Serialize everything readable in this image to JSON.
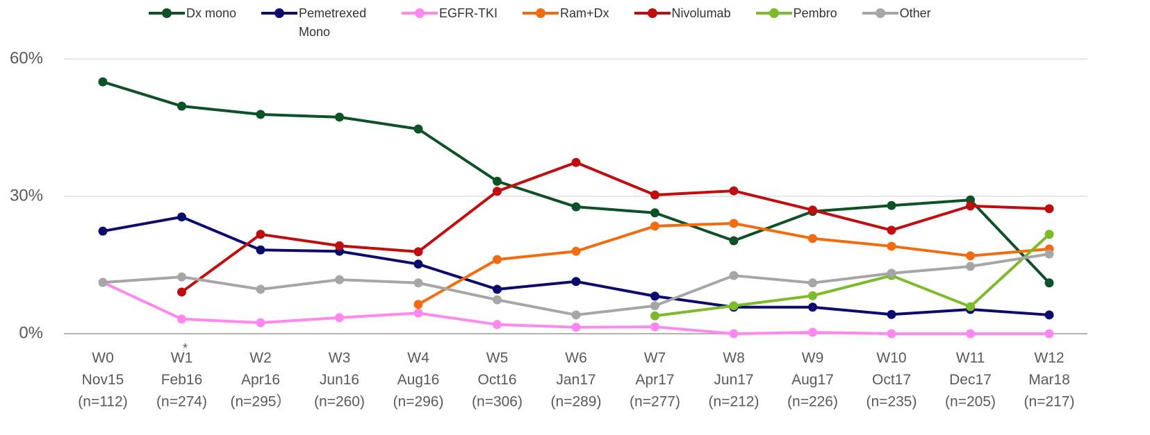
{
  "chart_data": {
    "type": "line",
    "categories": [
      [
        "W0",
        "Nov15",
        "(n=112)"
      ],
      [
        "W1",
        "Feb16",
        "(n=274)"
      ],
      [
        "W2",
        "Apr16",
        "(n=295）"
      ],
      [
        "W3",
        "Jun16",
        "(n=260)"
      ],
      [
        "W4",
        "Aug16",
        "(n=296)"
      ],
      [
        "W5",
        "Oct16",
        "(n=306)"
      ],
      [
        "W6",
        "Jan17",
        "(n=289)"
      ],
      [
        "W7",
        "Apr17",
        "(n=277)"
      ],
      [
        "W8",
        "Jun17",
        "(n=212)"
      ],
      [
        "W9",
        "Aug17",
        "(n=226)"
      ],
      [
        "W10",
        "Oct17",
        "(n=235)"
      ],
      [
        "W11",
        "Dec17",
        "(n=205)"
      ],
      [
        "W12",
        "Mar18",
        "(n=217)"
      ]
    ],
    "annotation": "*",
    "ylim": [
      0,
      60
    ],
    "yticks": [
      {
        "value": 0,
        "label": "0%"
      },
      {
        "value": 30,
        "label": "30%"
      },
      {
        "value": 60,
        "label": "60%"
      }
    ],
    "grid": true,
    "legend": "top",
    "series": [
      {
        "name": "Dx mono",
        "color": "#0d5126",
        "values": [
          55.0,
          49.7,
          47.9,
          47.3,
          44.7,
          33.3,
          27.7,
          26.4,
          20.3,
          26.7,
          28.0,
          29.2,
          11.1
        ]
      },
      {
        "name": "Pemetrexed Mono",
        "color": "#0b0a6e",
        "values": [
          22.4,
          25.5,
          18.3,
          18.0,
          15.2,
          9.7,
          11.4,
          8.2,
          5.8,
          5.8,
          4.2,
          5.3,
          4.1
        ]
      },
      {
        "name": "EGFR-TKI",
        "color": "#ff88f0",
        "values": [
          11.2,
          3.2,
          2.4,
          3.5,
          4.5,
          2.0,
          1.4,
          1.5,
          0,
          0.3,
          0,
          0,
          0
        ]
      },
      {
        "name": "Ram+Dx",
        "color": "#f26b0f",
        "values": [
          null,
          null,
          null,
          null,
          6.4,
          16.2,
          18.0,
          23.5,
          24.1,
          20.8,
          19.1,
          17.0,
          18.5
        ]
      },
      {
        "name": "Nivolumab",
        "color": "#c00d0d",
        "values": [
          null,
          9.1,
          21.7,
          19.2,
          17.9,
          31.1,
          37.4,
          30.3,
          31.2,
          27.0,
          22.6,
          27.9,
          27.3
        ]
      },
      {
        "name": "Pembro",
        "color": "#7dbb2a",
        "values": [
          null,
          null,
          null,
          null,
          null,
          null,
          null,
          3.9,
          6.1,
          8.3,
          12.7,
          5.9,
          21.7
        ]
      },
      {
        "name": "Other",
        "color": "#a6a6a6",
        "values": [
          11.2,
          12.4,
          9.7,
          11.8,
          11.1,
          7.4,
          4.1,
          6.1,
          12.7,
          11.1,
          13.2,
          14.7,
          17.4
        ]
      }
    ]
  }
}
